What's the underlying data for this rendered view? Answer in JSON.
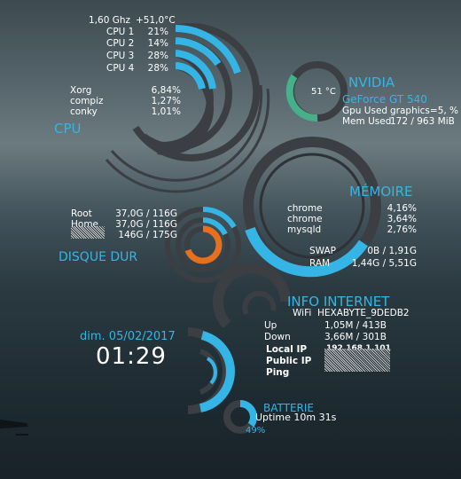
{
  "cpu": {
    "freq": "1,60 Ghz",
    "temp": "+51,0°C",
    "cores": [
      {
        "label": "CPU 1",
        "value": "21%",
        "pct": 21
      },
      {
        "label": "CPU 2",
        "value": "14%",
        "pct": 14
      },
      {
        "label": "CPU 3",
        "value": "28%",
        "pct": 28
      },
      {
        "label": "CPU 4",
        "value": "28%",
        "pct": 28
      }
    ],
    "processes": [
      {
        "name": "Xorg",
        "value": "6,84%"
      },
      {
        "name": "compiz",
        "value": "1,27%"
      },
      {
        "name": "conky",
        "value": "1,01%"
      }
    ],
    "title": "CPU"
  },
  "nvidia": {
    "title": "NVIDIA",
    "temp": "51 °C",
    "model": "GeForce GT 540",
    "gpu_used_label": "Gpu Used",
    "gpu_used_value": "graphics=5, %",
    "mem_used_label": "Mem Used",
    "mem_used_value": "172 / 963 MiB"
  },
  "memory": {
    "title": "MÉMOIRE",
    "processes": [
      {
        "name": "chrome",
        "value": "4,16%"
      },
      {
        "name": "chrome",
        "value": "3,64%"
      },
      {
        "name": "mysqld",
        "value": "2,76%"
      }
    ],
    "swap_label": "SWAP",
    "swap_value": "0B / 1,91G",
    "ram_label": "RAM",
    "ram_value": "1,44G / 5,51G"
  },
  "disk": {
    "title": "DISQUE DUR",
    "rows": [
      {
        "name": "Root",
        "value": "37,0G / 116G"
      },
      {
        "name": "Home",
        "value": "37,0G / 116G"
      },
      {
        "name": "",
        "value": "146G / 175G"
      }
    ]
  },
  "network": {
    "title": "INFO INTERNET",
    "wifi_label": "WiFi",
    "wifi_value": "HEXABYTE_9DEDB2",
    "up_label": "Up",
    "up_value": "1,05M / 413B",
    "down_label": "Down",
    "down_value": "3,66M / 301B",
    "local_ip_label": "Local IP",
    "local_ip_value": "192.168.1.101",
    "public_ip_label": "Public IP",
    "ping_label": "Ping"
  },
  "clock": {
    "date": "dim. 05/02/2017",
    "time": "01:29"
  },
  "battery": {
    "title": "BATTERIE",
    "uptime": "Uptime 10m 31s",
    "percent": "49%",
    "level": 49
  },
  "colors": {
    "accent": "#35b5e5",
    "orange": "#e8701d",
    "green": "#45b08a",
    "track": "#3b3f44",
    "text": "#ffffff"
  }
}
